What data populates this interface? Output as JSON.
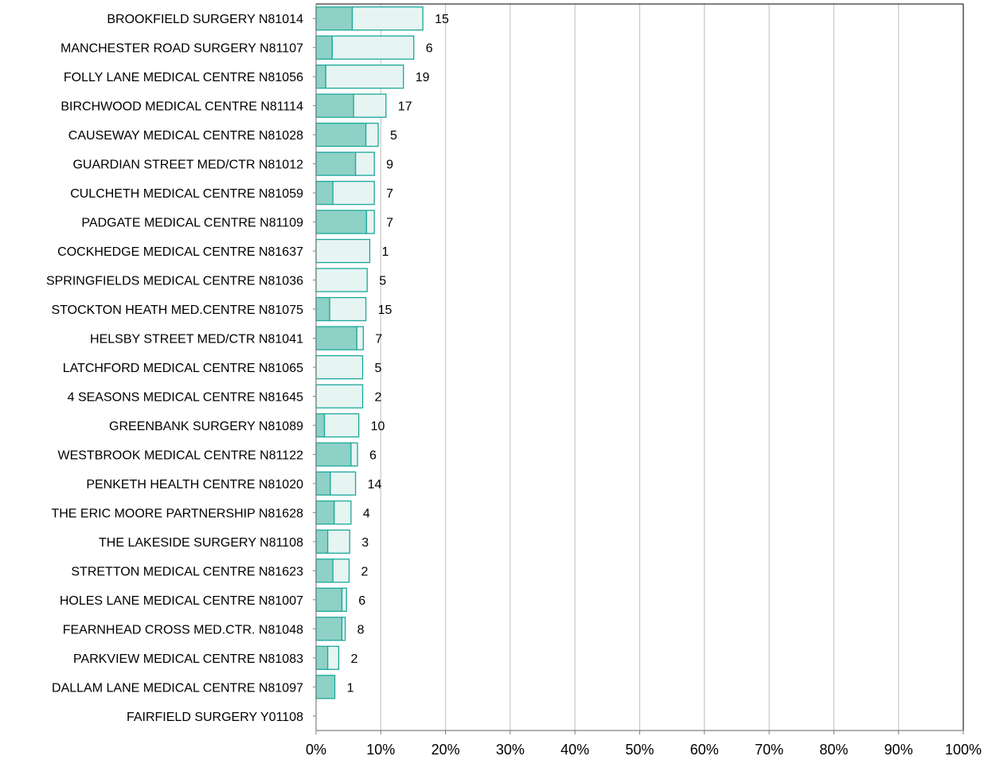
{
  "chart_data": {
    "type": "bar",
    "orientation": "horizontal",
    "stacked": true,
    "title": "",
    "xlabel": "",
    "ylabel": "",
    "xlim": [
      0,
      100
    ],
    "x_ticks": [
      "0%",
      "10%",
      "20%",
      "30%",
      "40%",
      "50%",
      "60%",
      "70%",
      "80%",
      "90%",
      "100%"
    ],
    "grid": "vertical",
    "legend": "none",
    "colors": {
      "inner_fill": "#8ed1c6",
      "outer_fill": "#e6f4f2",
      "outline": "#1aa89a",
      "grid": "#c8c8c8",
      "axis": "#808080"
    },
    "categories": [
      "BROOKFIELD SURGERY N81014",
      "MANCHESTER ROAD SURGERY N81107",
      "FOLLY LANE MEDICAL CENTRE N81056",
      "BIRCHWOOD MEDICAL CENTRE N81114",
      "CAUSEWAY MEDICAL CENTRE N81028",
      "GUARDIAN STREET MED/CTR N81012",
      "CULCHETH MEDICAL CENTRE N81059",
      "PADGATE MEDICAL CENTRE N81109",
      "COCKHEDGE MEDICAL CENTRE N81637",
      "SPRINGFIELDS MEDICAL CENTRE N81036",
      "STOCKTON HEATH MED.CENTRE N81075",
      "HELSBY STREET MED/CTR N81041",
      "LATCHFORD MEDICAL CENTRE N81065",
      "4 SEASONS MEDICAL CENTRE N81645",
      "GREENBANK SURGERY N81089",
      "WESTBROOK MEDICAL CENTRE N81122",
      "PENKETH HEALTH CENTRE N81020",
      "THE ERIC MOORE PARTNERSHIP N81628",
      "THE LAKESIDE SURGERY N81108",
      "STRETTON MEDICAL CENTRE N81623",
      "HOLES LANE MEDICAL CENTRE N81007",
      "FEARNHEAD CROSS MED.CTR. N81048",
      "PARKVIEW MEDICAL CENTRE N81083",
      "DALLAM LANE MEDICAL CENTRE N81097",
      "FAIRFIELD SURGERY Y01108"
    ],
    "series": [
      {
        "values": [
          5.6,
          2.5,
          1.5,
          5.8,
          7.7,
          6.1,
          2.6,
          7.8,
          0,
          0,
          2.1,
          6.3,
          0,
          0,
          1.3,
          5.4,
          2.2,
          2.8,
          1.8,
          2.6,
          4.0,
          4.0,
          1.8,
          2.9,
          0
        ]
      },
      {
        "values": [
          10.9,
          12.6,
          12.0,
          5.0,
          1.9,
          2.9,
          6.4,
          1.2,
          8.3,
          7.9,
          5.6,
          1.0,
          7.2,
          7.2,
          5.3,
          1.0,
          3.9,
          2.6,
          3.4,
          2.5,
          0.7,
          0.5,
          1.7,
          0,
          0
        ]
      }
    ],
    "counts": [
      "15",
      "6",
      "19",
      "17",
      "5",
      "9",
      "7",
      "7",
      "1",
      "5",
      "15",
      "7",
      "5",
      "2",
      "10",
      "6",
      "14",
      "4",
      "3",
      "2",
      "6",
      "8",
      "2",
      "1",
      ""
    ]
  }
}
